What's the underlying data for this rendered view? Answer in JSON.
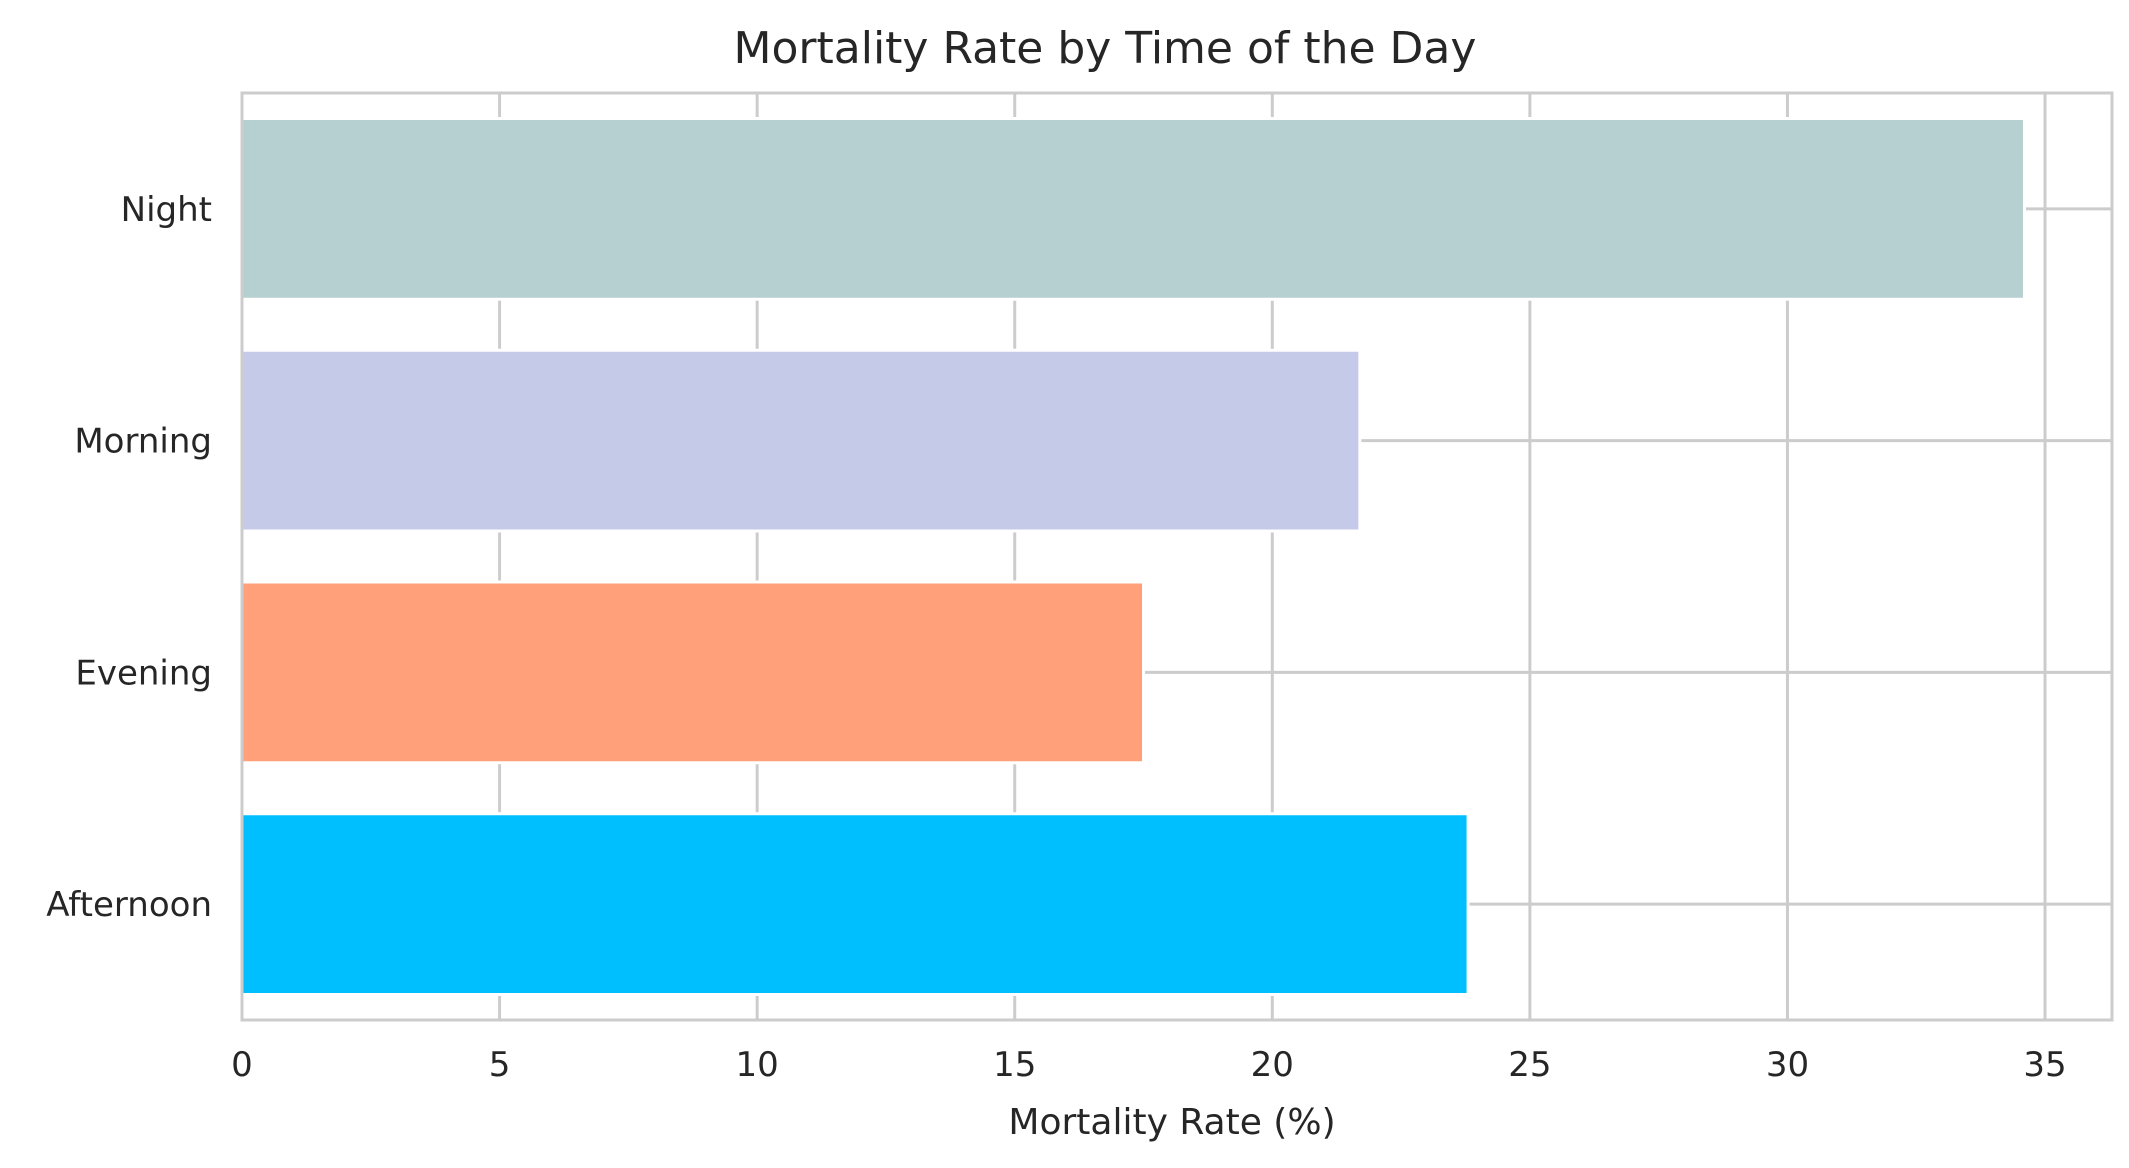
{
  "chart_data": {
    "type": "bar",
    "orientation": "horizontal",
    "title": "Mortality Rate by Time of the Day",
    "xlabel": "Mortality Rate (%)",
    "ylabel": "",
    "categories": [
      "Afternoon",
      "Evening",
      "Morning",
      "Night"
    ],
    "values": [
      23.8,
      17.5,
      21.7,
      34.6
    ],
    "colors": [
      "#00bfff",
      "#ffa07a",
      "#c5cae9",
      "#b6cfd0"
    ],
    "xlim": [
      0,
      36.3
    ],
    "xticks": [
      0,
      5,
      10,
      15,
      20,
      25,
      30,
      35
    ],
    "grid": true,
    "grid_color": "#cccccc",
    "legend": "none"
  }
}
